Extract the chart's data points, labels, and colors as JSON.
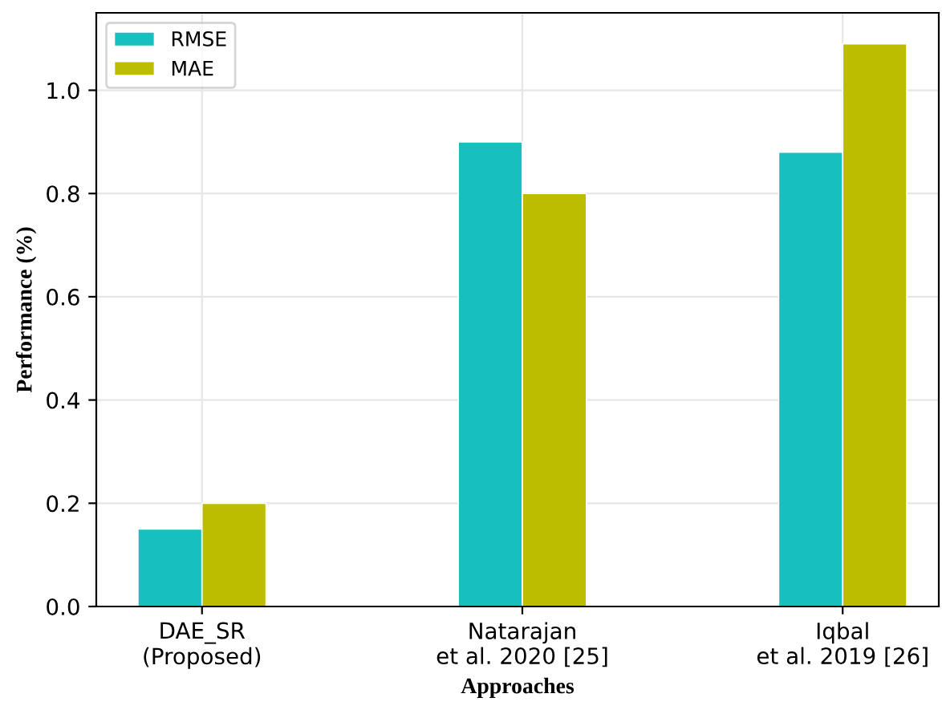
{
  "chart_data": {
    "type": "bar",
    "xlabel": "Approaches",
    "ylabel": "Performance (%)",
    "categories": [
      "DAE_SR\n(Proposed)",
      "Natarajan\net al. 2020 [25]",
      "Iqbal\net al. 2019 [26]"
    ],
    "series": [
      {
        "name": "RMSE",
        "color": "#17bfbf",
        "values": [
          0.15,
          0.9,
          0.88
        ]
      },
      {
        "name": "MAE",
        "color": "#bcbd00",
        "values": [
          0.2,
          0.8,
          1.09
        ]
      }
    ],
    "ylim": [
      0,
      1.15
    ],
    "yticks": [
      {
        "value": 0,
        "label": "0.0"
      },
      0.2,
      0.4,
      0.6,
      0.8,
      {
        "value": 1,
        "label": "1.0"
      }
    ],
    "grid": true,
    "legend": "top left"
  }
}
